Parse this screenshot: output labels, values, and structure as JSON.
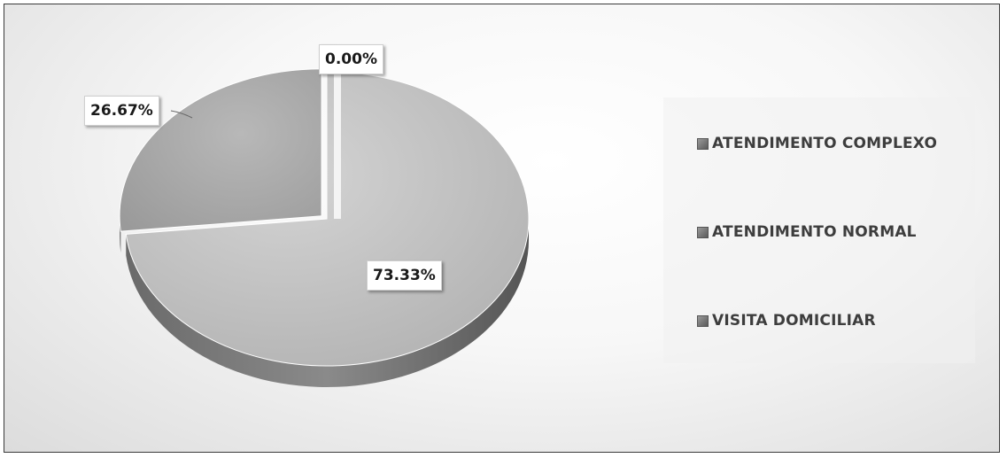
{
  "chart_data": {
    "type": "pie",
    "title": "",
    "categories": [
      "ATENDIMENTO COMPLEXO",
      "ATENDIMENTO NORMAL",
      "VISITA DOMICILIAR"
    ],
    "values": [
      0.0,
      26.67,
      73.33
    ],
    "data_labels": [
      "0.00%",
      "26.67%",
      "73.33%"
    ],
    "legend": {
      "placement": "right",
      "entries": [
        "ATENDIMENTO COMPLEXO",
        "ATENDIMENTO NORMAL",
        "VISITA DOMICILIAR"
      ]
    },
    "style": "3d-exploded",
    "colors": [
      "#6e6e6e",
      "#a6a6a6",
      "#c4c4c4"
    ]
  }
}
